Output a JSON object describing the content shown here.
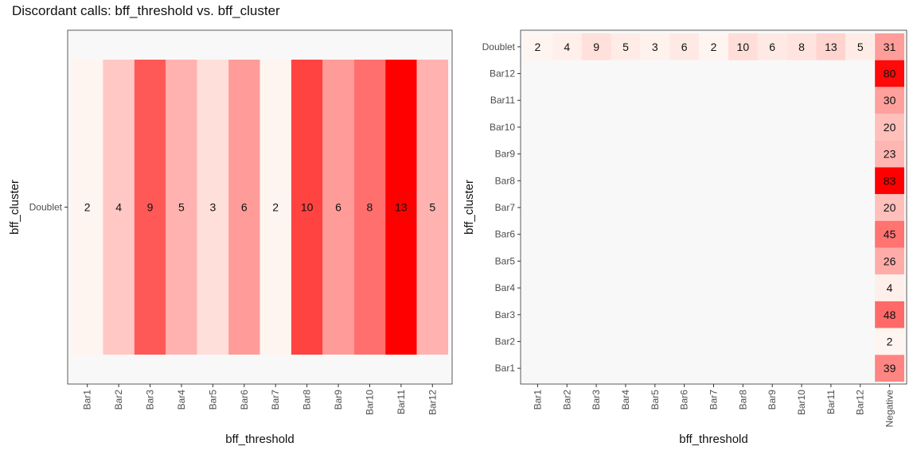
{
  "title": "Discordant calls: bff_threshold vs. bff_cluster",
  "chart_data": [
    {
      "type": "heatmap",
      "xlabel": "bff_threshold",
      "ylabel": "bff_cluster",
      "x_categories": [
        "Bar1",
        "Bar2",
        "Bar3",
        "Bar4",
        "Bar5",
        "Bar6",
        "Bar7",
        "Bar8",
        "Bar9",
        "Bar10",
        "Bar11",
        "Bar12"
      ],
      "y_categories": [
        "Doublet"
      ],
      "cells": [
        {
          "x": "Bar1",
          "y": "Doublet",
          "value": 2
        },
        {
          "x": "Bar2",
          "y": "Doublet",
          "value": 4
        },
        {
          "x": "Bar3",
          "y": "Doublet",
          "value": 9
        },
        {
          "x": "Bar4",
          "y": "Doublet",
          "value": 5
        },
        {
          "x": "Bar5",
          "y": "Doublet",
          "value": 3
        },
        {
          "x": "Bar6",
          "y": "Doublet",
          "value": 6
        },
        {
          "x": "Bar7",
          "y": "Doublet",
          "value": 2
        },
        {
          "x": "Bar8",
          "y": "Doublet",
          "value": 10
        },
        {
          "x": "Bar9",
          "y": "Doublet",
          "value": 6
        },
        {
          "x": "Bar10",
          "y": "Doublet",
          "value": 8
        },
        {
          "x": "Bar11",
          "y": "Doublet",
          "value": 13
        },
        {
          "x": "Bar12",
          "y": "Doublet",
          "value": 5
        }
      ],
      "color_low": "#fff5f0",
      "color_high": "#ff0000",
      "panel_background": "#f8f8f8",
      "grid": false
    },
    {
      "type": "heatmap",
      "xlabel": "bff_threshold",
      "ylabel": "bff_cluster",
      "x_categories": [
        "Bar1",
        "Bar2",
        "Bar3",
        "Bar4",
        "Bar5",
        "Bar6",
        "Bar7",
        "Bar8",
        "Bar9",
        "Bar10",
        "Bar11",
        "Bar12",
        "Negative"
      ],
      "y_categories": [
        "Doublet",
        "Bar12",
        "Bar11",
        "Bar10",
        "Bar9",
        "Bar8",
        "Bar7",
        "Bar6",
        "Bar5",
        "Bar4",
        "Bar3",
        "Bar2",
        "Bar1"
      ],
      "cells": [
        {
          "x": "Bar1",
          "y": "Doublet",
          "value": 2
        },
        {
          "x": "Bar2",
          "y": "Doublet",
          "value": 4
        },
        {
          "x": "Bar3",
          "y": "Doublet",
          "value": 9
        },
        {
          "x": "Bar4",
          "y": "Doublet",
          "value": 5
        },
        {
          "x": "Bar5",
          "y": "Doublet",
          "value": 3
        },
        {
          "x": "Bar6",
          "y": "Doublet",
          "value": 6
        },
        {
          "x": "Bar7",
          "y": "Doublet",
          "value": 2
        },
        {
          "x": "Bar8",
          "y": "Doublet",
          "value": 10
        },
        {
          "x": "Bar9",
          "y": "Doublet",
          "value": 6
        },
        {
          "x": "Bar10",
          "y": "Doublet",
          "value": 8
        },
        {
          "x": "Bar11",
          "y": "Doublet",
          "value": 13
        },
        {
          "x": "Bar12",
          "y": "Doublet",
          "value": 5
        },
        {
          "x": "Negative",
          "y": "Doublet",
          "value": 31
        },
        {
          "x": "Negative",
          "y": "Bar12",
          "value": 80
        },
        {
          "x": "Negative",
          "y": "Bar11",
          "value": 30
        },
        {
          "x": "Negative",
          "y": "Bar10",
          "value": 20
        },
        {
          "x": "Negative",
          "y": "Bar9",
          "value": 23
        },
        {
          "x": "Negative",
          "y": "Bar8",
          "value": 83
        },
        {
          "x": "Negative",
          "y": "Bar7",
          "value": 20
        },
        {
          "x": "Negative",
          "y": "Bar6",
          "value": 45
        },
        {
          "x": "Negative",
          "y": "Bar5",
          "value": 26
        },
        {
          "x": "Negative",
          "y": "Bar4",
          "value": 4
        },
        {
          "x": "Negative",
          "y": "Bar3",
          "value": 48
        },
        {
          "x": "Negative",
          "y": "Bar2",
          "value": 2
        },
        {
          "x": "Negative",
          "y": "Bar1",
          "value": 39
        }
      ],
      "color_low": "#fff5f0",
      "color_high": "#ff0000",
      "panel_background": "#f8f8f8",
      "grid": false
    }
  ]
}
